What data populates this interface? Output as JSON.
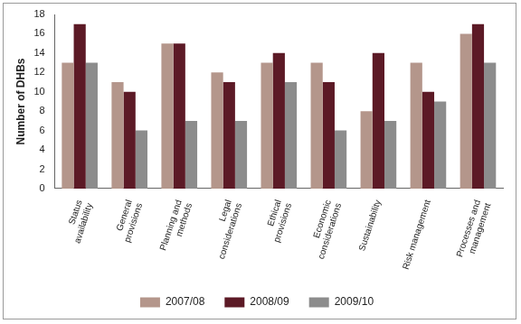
{
  "chart_data": {
    "type": "bar",
    "y_label": "Number of DHBs",
    "categories": [
      "Status availability",
      "General provisions",
      "Planning and methods",
      "Legal considerations",
      "Ethical provisions",
      "Economic considerations",
      "Sustainability",
      "Risk management",
      "Processes and management"
    ],
    "series": [
      {
        "name": "2007/08",
        "color": "#b4968b",
        "values": [
          13,
          11,
          15,
          12,
          13,
          13,
          8,
          13,
          16
        ]
      },
      {
        "name": "2008/09",
        "color": "#5c1a26",
        "values": [
          17,
          10,
          15,
          11,
          14,
          11,
          14,
          10,
          17
        ]
      },
      {
        "name": "2009/10",
        "color": "#8c8c8c",
        "values": [
          13,
          6,
          7,
          7,
          11,
          6,
          7,
          9,
          13
        ]
      }
    ],
    "ylim": [
      0,
      18
    ],
    "yticks": [
      0,
      2,
      4,
      6,
      8,
      10,
      12,
      14,
      16,
      18
    ],
    "grid": false,
    "legend": "bottom"
  }
}
